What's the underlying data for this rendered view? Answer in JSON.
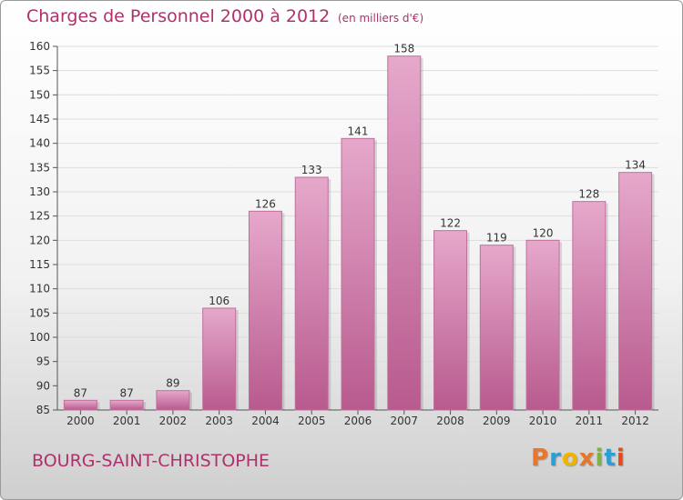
{
  "header": {
    "title": "Charges de Personnel 2000 à 2012",
    "subtitle": "(en milliers d'€)"
  },
  "footer": {
    "commune": "BOURG-SAINT-CHRISTOPHE",
    "logo": [
      "P",
      "r",
      "o",
      "x",
      "i",
      "t",
      "i"
    ],
    "logo_colors": [
      "#e8762b",
      "#2a9fd6",
      "#f0b400",
      "#e8762b",
      "#7cb342",
      "#2a9fd6",
      "#e64a19"
    ]
  },
  "colors": {
    "bar": "#d67fae",
    "bar_light": "#e6a8cb",
    "bar_dark": "#b85a8e",
    "text_accent": "#b0306c"
  },
  "chart_data": {
    "type": "bar",
    "categories": [
      "2000",
      "2001",
      "2002",
      "2003",
      "2004",
      "2005",
      "2006",
      "2007",
      "2008",
      "2009",
      "2010",
      "2011",
      "2012"
    ],
    "values": [
      87,
      87,
      89,
      106,
      126,
      133,
      141,
      158,
      122,
      119,
      120,
      128,
      134
    ],
    "ylim": [
      85,
      160
    ],
    "yticks": [
      85,
      90,
      95,
      100,
      105,
      110,
      115,
      120,
      125,
      130,
      135,
      140,
      145,
      150,
      155,
      160
    ],
    "grid": true
  }
}
